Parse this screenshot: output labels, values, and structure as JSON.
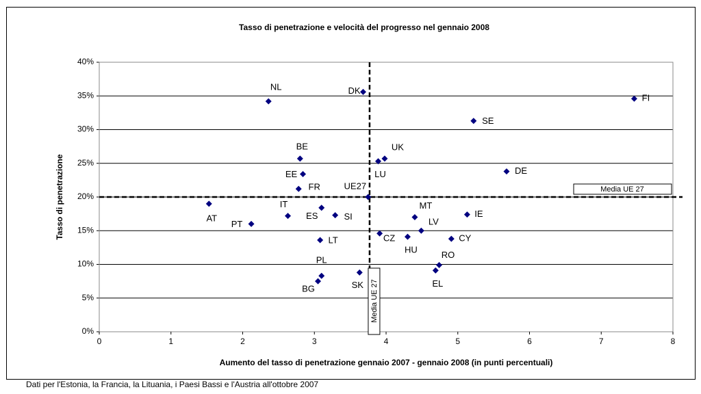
{
  "chart_data": {
    "type": "scatter",
    "title": "Tasso di penetrazione e velocità del progresso nel gennaio 2008",
    "x_label": "Aumento del tasso di penetrazione gennaio 2007 - gennaio 2008 (in punti percentuali)",
    "y_label": "Tasso di penetrazione",
    "note": "Dati per l'Estonia, la Francia, la Lituania, i Paesi Bassi e l'Austria all'ottobre 2007",
    "color": "#000080",
    "point_labels": [
      "NL",
      "DK",
      "FI",
      "SE",
      "BE",
      "UK",
      "LU",
      "DE",
      "EE",
      "FR",
      "UE27",
      "AT",
      "ES",
      "IT",
      "SI",
      "MT",
      "IE",
      "PT",
      "LV",
      "CZ",
      "HU",
      "CY",
      "LT",
      "RO",
      "EL",
      "PL",
      "SK",
      "BG"
    ],
    "x": [
      2.36,
      3.68,
      7.46,
      5.22,
      2.8,
      3.98,
      3.89,
      5.68,
      2.84,
      2.78,
      3.75,
      1.53,
      3.1,
      2.63,
      3.29,
      4.4,
      5.13,
      2.12,
      4.49,
      3.91,
      4.3,
      4.91,
      3.08,
      4.74,
      4.69,
      3.1,
      3.63,
      3.05
    ],
    "values": [
      34.2,
      35.6,
      34.6,
      31.3,
      25.7,
      25.7,
      25.3,
      23.8,
      23.4,
      21.2,
      20.0,
      19.0,
      18.4,
      17.2,
      17.3,
      17.0,
      17.4,
      16.0,
      15.0,
      14.6,
      14.1,
      13.8,
      13.6,
      9.9,
      9.1,
      8.3,
      8.8,
      7.5
    ],
    "ref_x": 3.77,
    "ref_x_label": "Media UE 27",
    "ref_y": 20,
    "ref_y_label": "Media UE 27",
    "xlim": [
      0,
      8
    ],
    "xticks": [
      0,
      1,
      2,
      3,
      4,
      5,
      6,
      7,
      8
    ],
    "ylim": [
      0,
      40
    ],
    "yticks": [
      {
        "value": 0,
        "label": "0%"
      },
      {
        "value": 5,
        "label": "5%"
      },
      {
        "value": 10,
        "label": "10%"
      },
      {
        "value": 15,
        "label": "15%"
      },
      {
        "value": 20,
        "label": "20%"
      },
      {
        "value": 25,
        "label": "25%"
      },
      {
        "value": 30,
        "label": "30%"
      },
      {
        "value": 35,
        "label": "35%"
      },
      {
        "value": 40,
        "label": "40%"
      }
    ],
    "grid": true
  }
}
